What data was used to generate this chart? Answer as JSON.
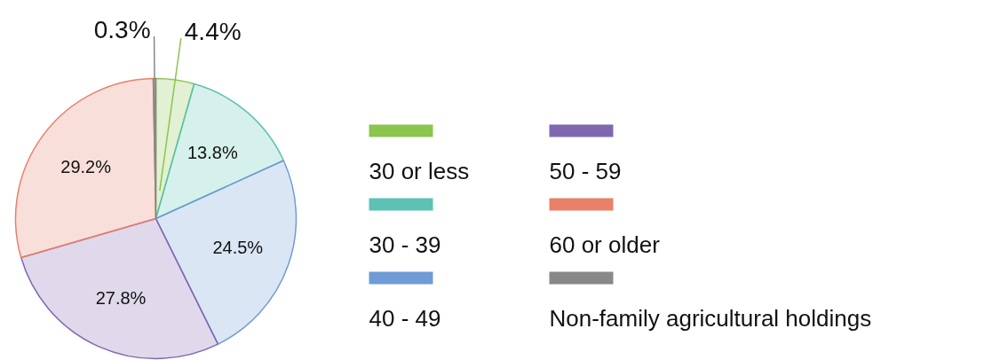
{
  "chart_data": {
    "type": "pie",
    "categories": [
      "30 or less",
      "30 - 39",
      "40 - 49",
      "50 - 59",
      "60 or older",
      "Non-family agricultural holdings"
    ],
    "values": [
      4.4,
      13.8,
      24.5,
      27.8,
      29.2,
      0.3
    ],
    "value_labels": [
      "4.4%",
      "13.8%",
      "24.5%",
      "27.8%",
      "29.2%",
      "0.3%"
    ],
    "colors": [
      "#8dc44e",
      "#5bc2b4",
      "#6f9bd6",
      "#8068b0",
      "#e8806a",
      "#888888"
    ],
    "legend": "right"
  }
}
